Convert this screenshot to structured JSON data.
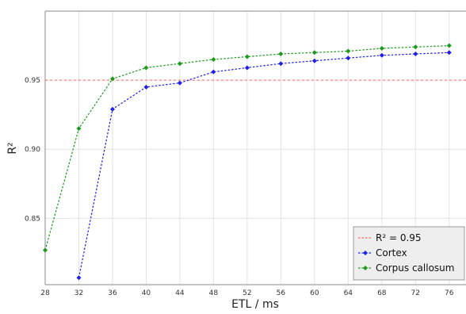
{
  "chart_data": {
    "type": "line",
    "title": "",
    "xlabel": "ETL / ms",
    "ylabel": "R²",
    "x": [
      28,
      32,
      36,
      40,
      44,
      48,
      52,
      56,
      60,
      64,
      68,
      72,
      76
    ],
    "xlim": [
      28,
      78
    ],
    "ylim": [
      0.802,
      1.0
    ],
    "x_ticks": [
      "28",
      "32",
      "36",
      "40",
      "44",
      "48",
      "52",
      "56",
      "60",
      "64",
      "68",
      "72",
      "76"
    ],
    "y_ticks": [
      {
        "value": 0.85,
        "label": "0.85"
      },
      {
        "value": 0.9,
        "label": "0.90"
      },
      {
        "value": 0.95,
        "label": "0.95"
      }
    ],
    "grid": true,
    "legend_position": "bottom-right",
    "reference_line": {
      "name": "R² = 0.95",
      "value": 0.95,
      "color": "#ff6666",
      "style": "dashed"
    },
    "series": [
      {
        "name": "Cortex",
        "color": "#1f1fe6",
        "x": [
          32,
          36,
          40,
          44,
          48,
          52,
          56,
          60,
          64,
          68,
          72,
          76
        ],
        "values": [
          0.807,
          0.929,
          0.945,
          0.948,
          0.956,
          0.959,
          0.962,
          0.964,
          0.966,
          0.968,
          0.969,
          0.97
        ]
      },
      {
        "name": "Corpus callosum",
        "color": "#1a9a1a",
        "x": [
          28,
          32,
          36,
          40,
          44,
          48,
          52,
          56,
          60,
          64,
          68,
          72,
          76
        ],
        "values": [
          0.827,
          0.915,
          0.951,
          0.959,
          0.962,
          0.965,
          0.967,
          0.969,
          0.97,
          0.971,
          0.973,
          0.974,
          0.975
        ]
      }
    ]
  }
}
